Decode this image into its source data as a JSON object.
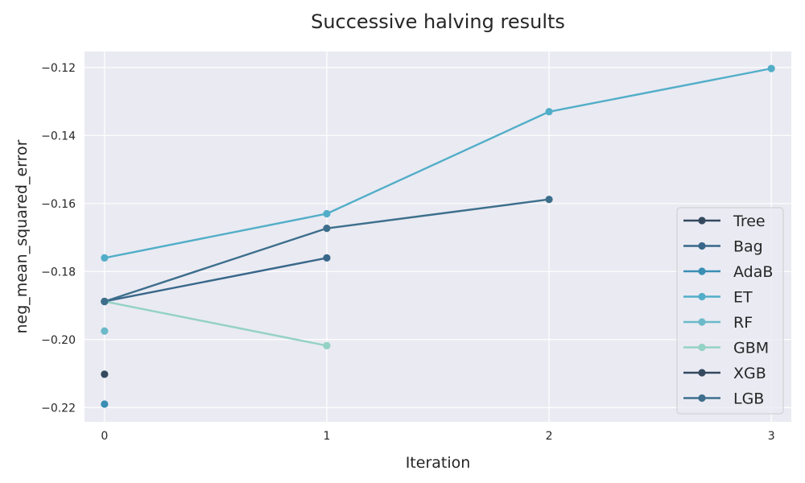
{
  "chart_data": {
    "type": "line",
    "title": "Successive halving results",
    "xlabel": "Iteration",
    "ylabel": "neg_mean_squared_error",
    "xlim": [
      -0.09,
      3.09
    ],
    "ylim": [
      -0.2242,
      -0.1153
    ],
    "x_ticks": [
      0,
      1,
      2,
      3
    ],
    "y_ticks": [
      -0.22,
      -0.2,
      -0.18,
      -0.16,
      -0.14,
      -0.12
    ],
    "y_tick_labels": [
      "−0.22",
      "−0.20",
      "−0.18",
      "−0.16",
      "−0.14",
      "−0.12"
    ],
    "grid": true,
    "legend_position": "lower-right",
    "series": [
      {
        "name": "Tree",
        "color": "#34495e",
        "x": [
          0
        ],
        "y": [
          -0.2102
        ]
      },
      {
        "name": "Bag",
        "color": "#38678a",
        "x": [
          0,
          1
        ],
        "y": [
          -0.1888,
          -0.176
        ]
      },
      {
        "name": "AdaB",
        "color": "#3a8eb4",
        "x": [
          0
        ],
        "y": [
          -0.219
        ]
      },
      {
        "name": "ET",
        "color": "#52aec8",
        "x": [
          0,
          1,
          2,
          3
        ],
        "y": [
          -0.176,
          -0.163,
          -0.133,
          -0.1203
        ]
      },
      {
        "name": "RF",
        "color": "#6bbac9",
        "x": [
          0
        ],
        "y": [
          -0.1975
        ]
      },
      {
        "name": "GBM",
        "color": "#93d2c4",
        "x": [
          0,
          1
        ],
        "y": [
          -0.1888,
          -0.2018
        ]
      },
      {
        "name": "XGB",
        "color": "#34495e",
        "x": [
          0
        ],
        "y": [
          -0.1888
        ]
      },
      {
        "name": "LGB",
        "color": "#3d6f8c",
        "x": [
          0,
          1,
          2
        ],
        "y": [
          -0.1888,
          -0.1673,
          -0.1588
        ]
      }
    ]
  }
}
